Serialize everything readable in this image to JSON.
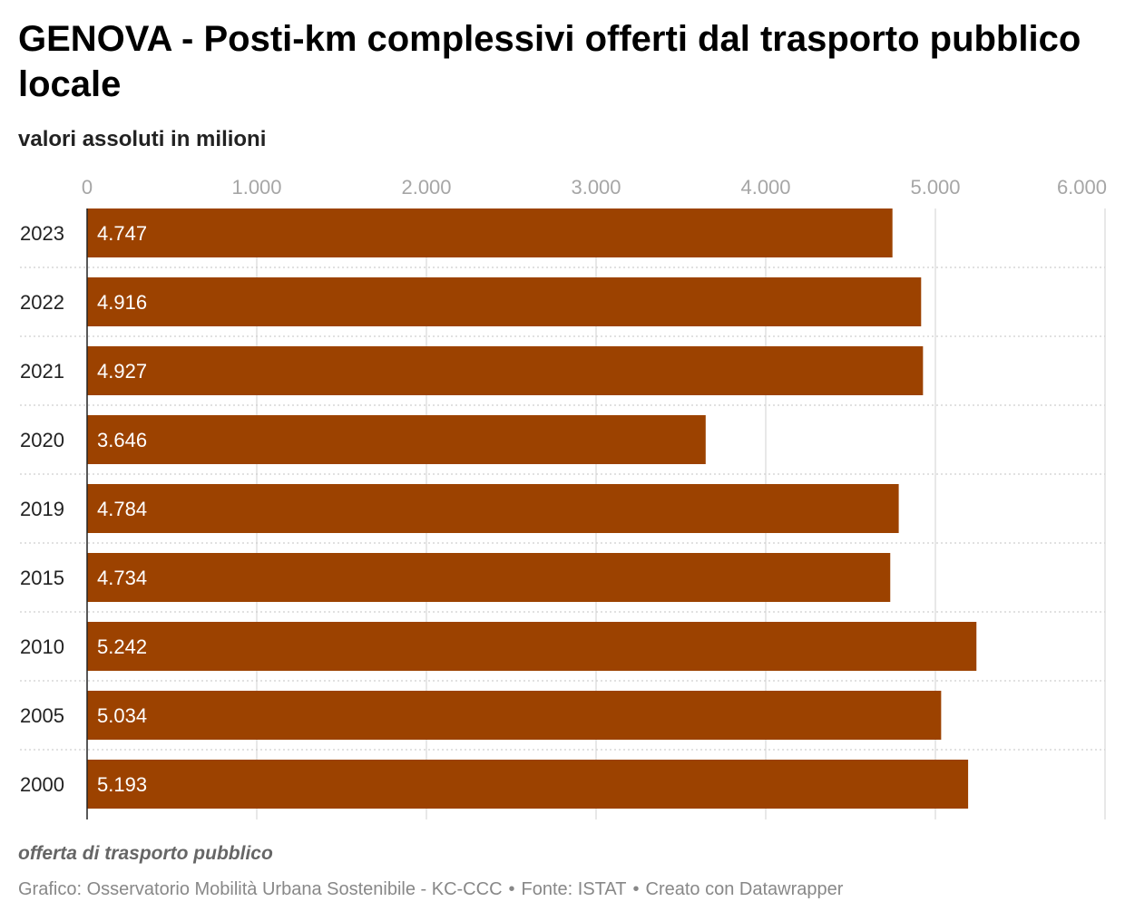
{
  "header": {
    "title": "GENOVA - Posti-km complessivi offerti dal trasporto pubblico locale",
    "subtitle": "valori assoluti in milioni"
  },
  "chart_data": {
    "type": "bar",
    "orientation": "horizontal",
    "categories": [
      "2023",
      "2022",
      "2021",
      "2020",
      "2019",
      "2015",
      "2010",
      "2005",
      "2000"
    ],
    "values": [
      4747,
      4916,
      4927,
      3646,
      4784,
      4734,
      5242,
      5034,
      5193
    ],
    "value_labels": [
      "4.747",
      "4.916",
      "4.927",
      "3.646",
      "4.784",
      "4.734",
      "5.242",
      "5.034",
      "5.193"
    ],
    "xlim": [
      0,
      6000
    ],
    "xticks": [
      0,
      1000,
      2000,
      3000,
      4000,
      5000,
      6000
    ],
    "xtick_labels": [
      "0",
      "1.000",
      "2.000",
      "3.000",
      "4.000",
      "5.000",
      "6.000"
    ],
    "bar_color": "#9c4200",
    "grid": true,
    "tick_position": "top"
  },
  "footer": {
    "note": "offerta di trasporto pubblico",
    "credit_chart": "Grafico: Osservatorio Mobilità Urbana Sostenibile - KC-CCC",
    "separator": "•",
    "credit_source": "Fonte: ISTAT",
    "credit_tool": "Creato con Datawrapper"
  },
  "colors": {
    "bar": "#9c4200",
    "grid": "#d9d9d9",
    "tick_label": "#a6a6a6",
    "value_label": "#ffffff",
    "footer_text": "#888888"
  }
}
